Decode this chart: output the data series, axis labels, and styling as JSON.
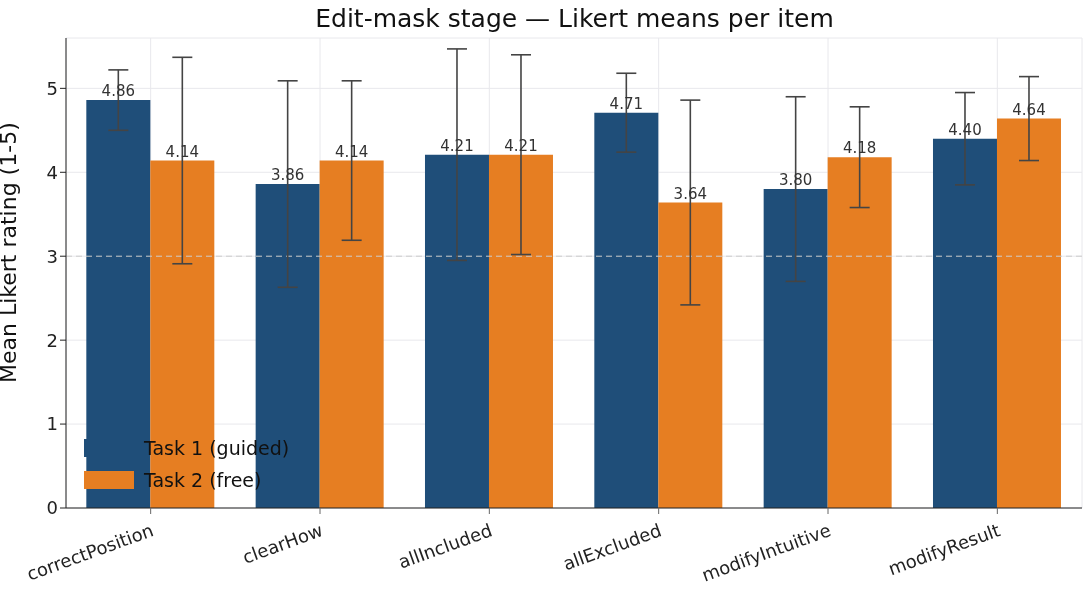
{
  "chart_data": {
    "type": "bar",
    "title": "Edit-mask stage — Likert means per item",
    "ylabel": "Mean Likert rating (1-5)",
    "categories": [
      "correctPosition",
      "clearHow",
      "allIncluded",
      "allExcluded",
      "modifyIntuitive",
      "modifyResult"
    ],
    "series": [
      {
        "name": "Task 1 (guided)",
        "color": "#1f4e79",
        "values": [
          4.86,
          3.86,
          4.21,
          4.71,
          3.8,
          4.4
        ],
        "errors": [
          0.36,
          1.23,
          1.26,
          0.47,
          1.1,
          0.55
        ],
        "value_labels": [
          "4.86",
          "3.86",
          "4.21",
          "4.71",
          "3.80",
          "4.40"
        ]
      },
      {
        "name": "Task 2 (free)",
        "color": "#e67e22",
        "values": [
          4.14,
          4.14,
          4.21,
          3.64,
          4.18,
          4.64
        ],
        "errors": [
          1.23,
          0.95,
          1.19,
          1.22,
          0.6,
          0.5
        ],
        "value_labels": [
          "4.14",
          "4.14",
          "4.21",
          "3.64",
          "4.18",
          "4.64"
        ]
      }
    ],
    "ylim": [
      0,
      5.6
    ],
    "yticks": [
      0,
      1,
      2,
      3,
      4,
      5
    ],
    "grid": true,
    "legend": "bottom left",
    "ref_lines": [
      {
        "axis": "y",
        "value": 3,
        "label": null,
        "color": "#cccccc",
        "line_style": "dashed"
      }
    ]
  }
}
